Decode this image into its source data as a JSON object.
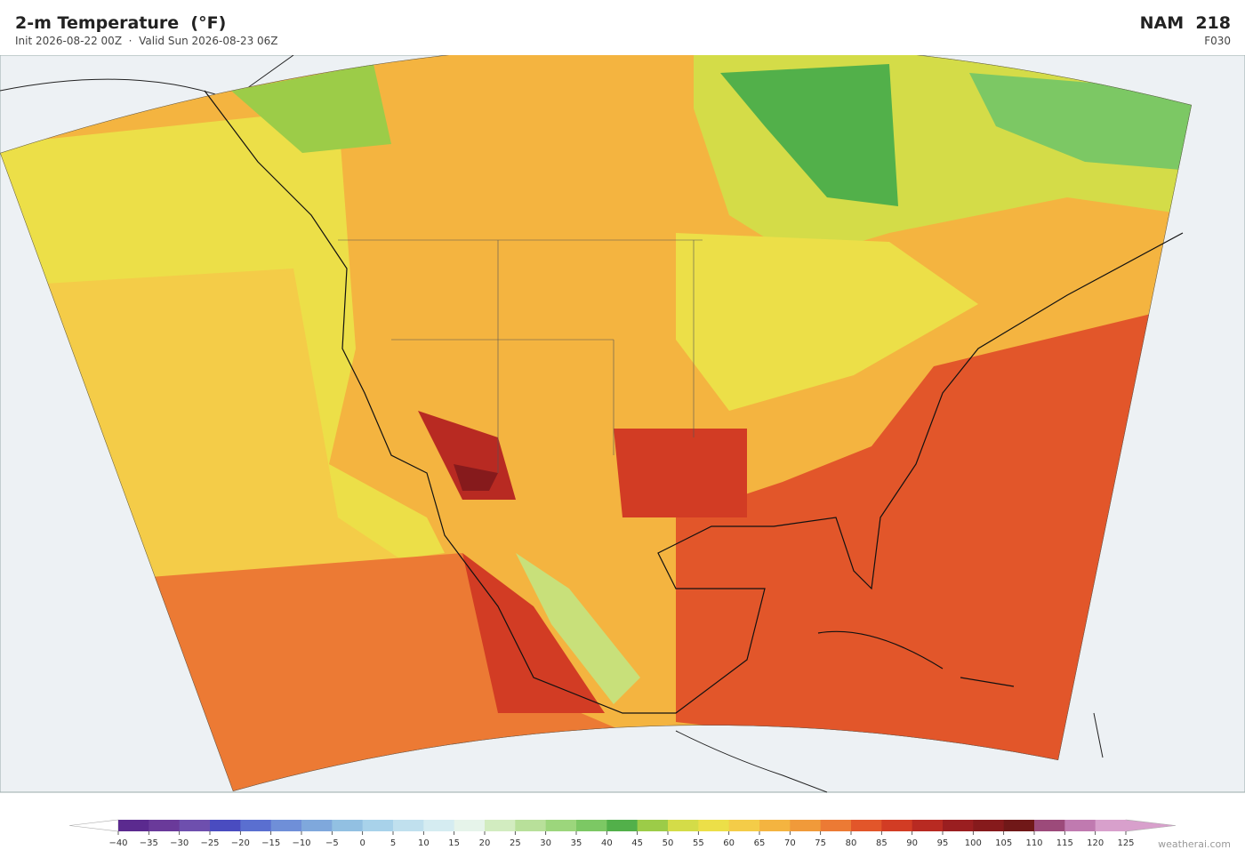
{
  "header": {
    "title": "2-m Temperature  (°F)",
    "subtitle": "Init 2026-08-22 00Z  ·  Valid Sun 2026-08-23 06Z",
    "model": "NAM  218",
    "forecast_hour": "F030"
  },
  "colorbar": {
    "ticks": [
      {
        "value": -40,
        "label": "−40"
      },
      {
        "value": -35,
        "label": "−35"
      },
      {
        "value": -30,
        "label": "−30"
      },
      {
        "value": -25,
        "label": "−25"
      },
      {
        "value": -20,
        "label": "−20"
      },
      {
        "value": -15,
        "label": "−15"
      },
      {
        "value": -10,
        "label": "−10"
      },
      {
        "value": -5,
        "label": "−5"
      },
      0,
      5,
      10,
      15,
      20,
      25,
      30,
      35,
      40,
      45,
      50,
      55,
      60,
      65,
      70,
      75,
      80,
      85,
      90,
      95,
      100,
      105,
      110,
      115,
      120,
      125
    ],
    "colors": [
      "#5b2a8f",
      "#6a3a9a",
      "#6e4fae",
      "#4a4cc0",
      "#5a6fd0",
      "#6f8fd8",
      "#7fa8dc",
      "#92c0e2",
      "#a8d2ea",
      "#c0e0ee",
      "#d5ecf1",
      "#e6f4ea",
      "#d2ecc0",
      "#b8e09a",
      "#9cd67c",
      "#7cc864",
      "#52b04a",
      "#9ccc48",
      "#d4dc48",
      "#ecdf48",
      "#f4cc48",
      "#f4b440",
      "#f09a3a",
      "#ec7a34",
      "#e2562a",
      "#d23c24",
      "#b82a22",
      "#9a1e20",
      "#861a1c",
      "#701818",
      "#9c4a7a",
      "#c07ab0",
      "#d8a0cc"
    ],
    "under_color": "#ffffff",
    "over_color": "#d8a0cc"
  },
  "credit": "weatherai.com"
}
